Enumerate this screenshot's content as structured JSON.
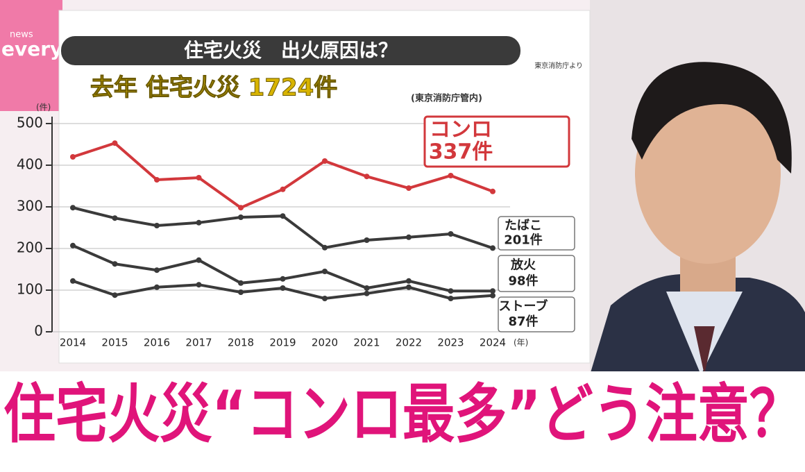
{
  "logo": {
    "small": "news",
    "main": "every."
  },
  "caption": "住宅火災“コンロ最多”どう注意？",
  "chart_data": {
    "type": "line",
    "title": "住宅火災　出火原因は？",
    "source": "東京消防庁より",
    "subtitle": "去年 住宅火災 1724件",
    "subtitle_note": "(東京消防庁管内)",
    "y_unit": "(件)",
    "x_unit": "(年)",
    "categories": [
      "2014",
      "2015",
      "2016",
      "2017",
      "2018",
      "2019",
      "2020",
      "2021",
      "2022",
      "2023",
      "2024"
    ],
    "ylim": [
      0,
      500
    ],
    "yticks": [
      0,
      100,
      200,
      300,
      400,
      500
    ],
    "grid": true,
    "series": [
      {
        "name": "コンロ",
        "label": "337件",
        "color": "#d2383c",
        "values": [
          420,
          453,
          365,
          370,
          298,
          342,
          410,
          373,
          345,
          375,
          337
        ]
      },
      {
        "name": "たばこ",
        "label": "201件",
        "color": "#3a3a3a",
        "values": [
          298,
          273,
          255,
          262,
          275,
          278,
          202,
          220,
          227,
          235,
          201
        ]
      },
      {
        "name": "放火",
        "label": "98件",
        "color": "#3a3a3a",
        "values": [
          207,
          163,
          148,
          172,
          117,
          127,
          145,
          105,
          122,
          98,
          98
        ]
      },
      {
        "name": "ストーブ",
        "label": "87件",
        "color": "#3a3a3a",
        "values": [
          122,
          88,
          107,
          113,
          95,
          105,
          80,
          92,
          107,
          80,
          87
        ]
      }
    ]
  }
}
